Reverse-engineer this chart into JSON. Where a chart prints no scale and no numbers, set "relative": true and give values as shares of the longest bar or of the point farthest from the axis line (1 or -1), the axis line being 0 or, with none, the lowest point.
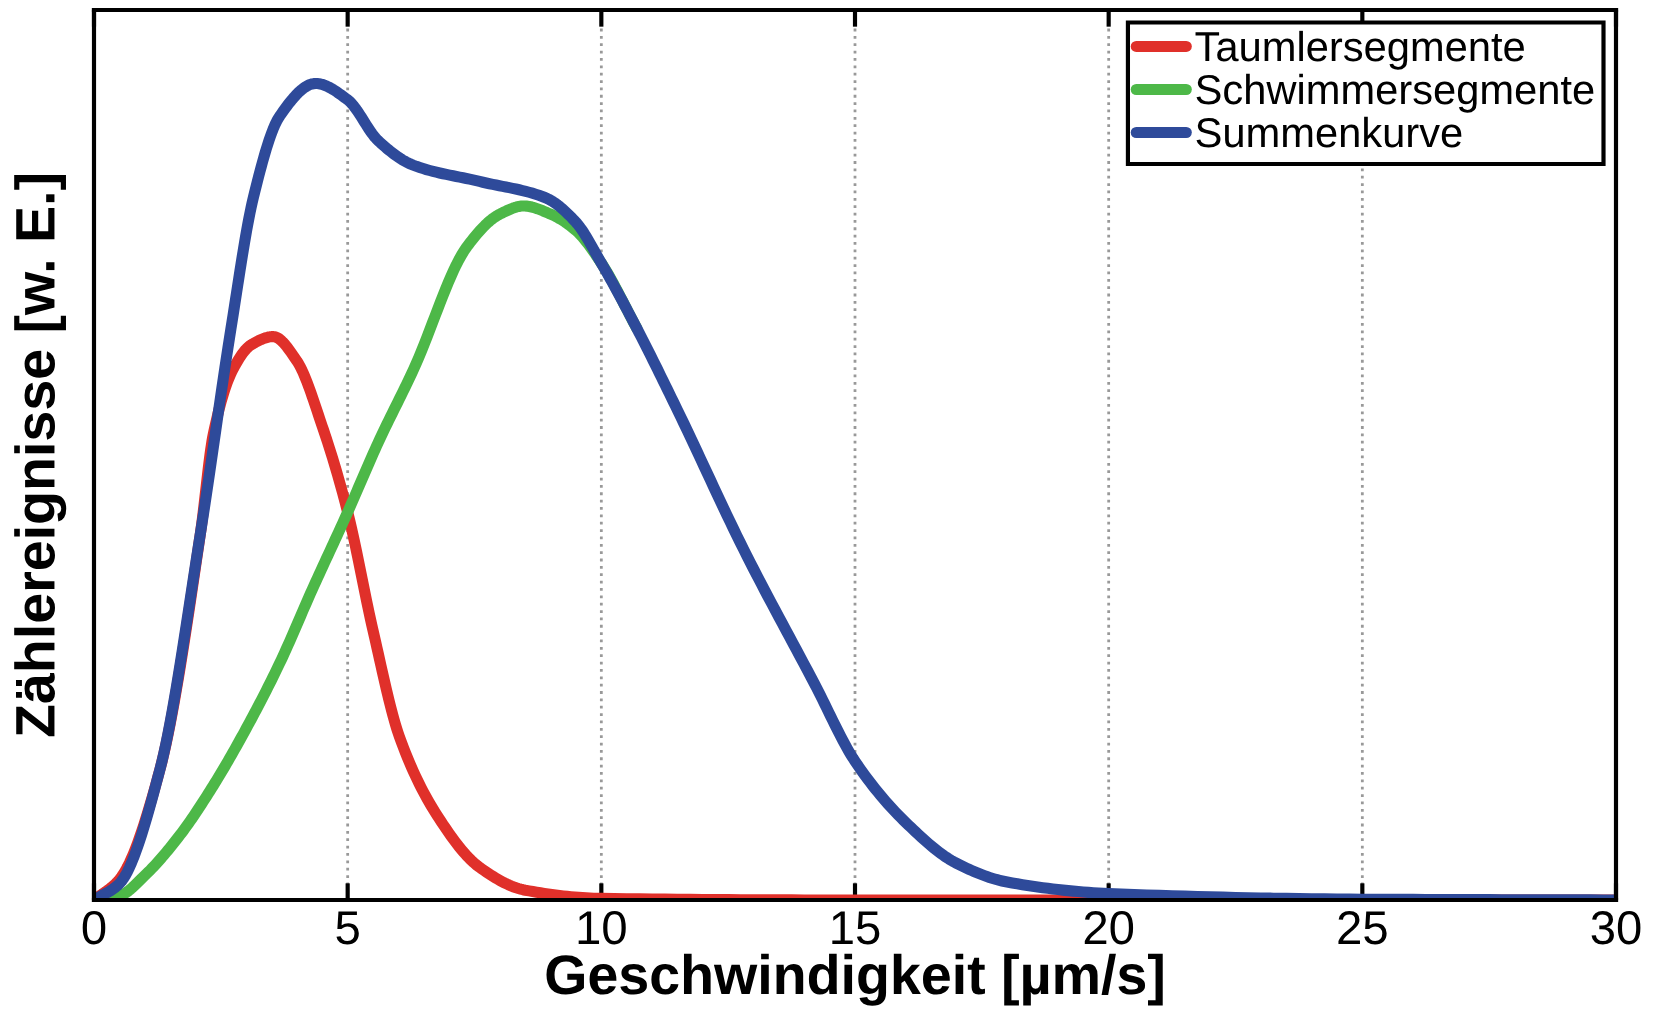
{
  "chart_data": {
    "type": "line",
    "relative": true,
    "xlabel": "Geschwindigkeit [µm/s]",
    "ylabel": "Zählereignisse [w. E.]",
    "xlim": [
      0,
      30
    ],
    "xticks": [
      0,
      5,
      10,
      15,
      20,
      25,
      30
    ],
    "grid": "x",
    "legend": "top right",
    "tick_labels": "x",
    "series": [
      {
        "name": "Taumlersegmente",
        "color": "#e0302a",
        "x": [
          0,
          0.5,
          1.3,
          2.1,
          2.35,
          2.74,
          3.1,
          3.53,
          4.0,
          4.5,
          5,
          5.5,
          6.02,
          6.8,
          7.6,
          8.5,
          10,
          15,
          20,
          25,
          30
        ],
        "values": [
          0,
          0.025,
          0.16,
          0.45,
          0.57,
          0.65,
          0.68,
          0.69,
          0.66,
          0.58,
          0.475,
          0.33,
          0.2,
          0.1,
          0.04,
          0.012,
          0.002,
          0,
          0,
          0,
          0
        ]
      },
      {
        "name": "Schwimmersegmente",
        "color": "#4db848",
        "x": [
          0,
          0.5,
          1.0,
          1.7,
          2.35,
          3.0,
          3.66,
          4.3,
          5,
          5.6,
          6.3,
          7.35,
          8.0,
          8.47,
          9.0,
          9.5,
          10,
          10.7
        ],
        "values": [
          0,
          0.005,
          0.03,
          0.08,
          0.14,
          0.21,
          0.29,
          0.38,
          0.475,
          0.56,
          0.65,
          0.8,
          0.84,
          0.85,
          0.84,
          0.82,
          0.78,
          0.7
        ]
      },
      {
        "name": "Summenkurve",
        "color": "#2e4a9a",
        "x": [
          0,
          0.5,
          1.3,
          2.1,
          2.7,
          3.14,
          3.66,
          4.37,
          5,
          5.6,
          6.29,
          7.6,
          8.9,
          9.5,
          10,
          10.7,
          11.5,
          12.8,
          14.2,
          15,
          16,
          17,
          18,
          20,
          25,
          30
        ],
        "values": [
          0,
          0.02,
          0.16,
          0.45,
          0.7,
          0.86,
          0.96,
          1.0,
          0.98,
          0.93,
          0.9,
          0.88,
          0.86,
          0.83,
          0.78,
          0.7,
          0.6,
          0.43,
          0.265,
          0.17,
          0.095,
          0.045,
          0.022,
          0.008,
          0.001,
          0
        ]
      }
    ]
  }
}
